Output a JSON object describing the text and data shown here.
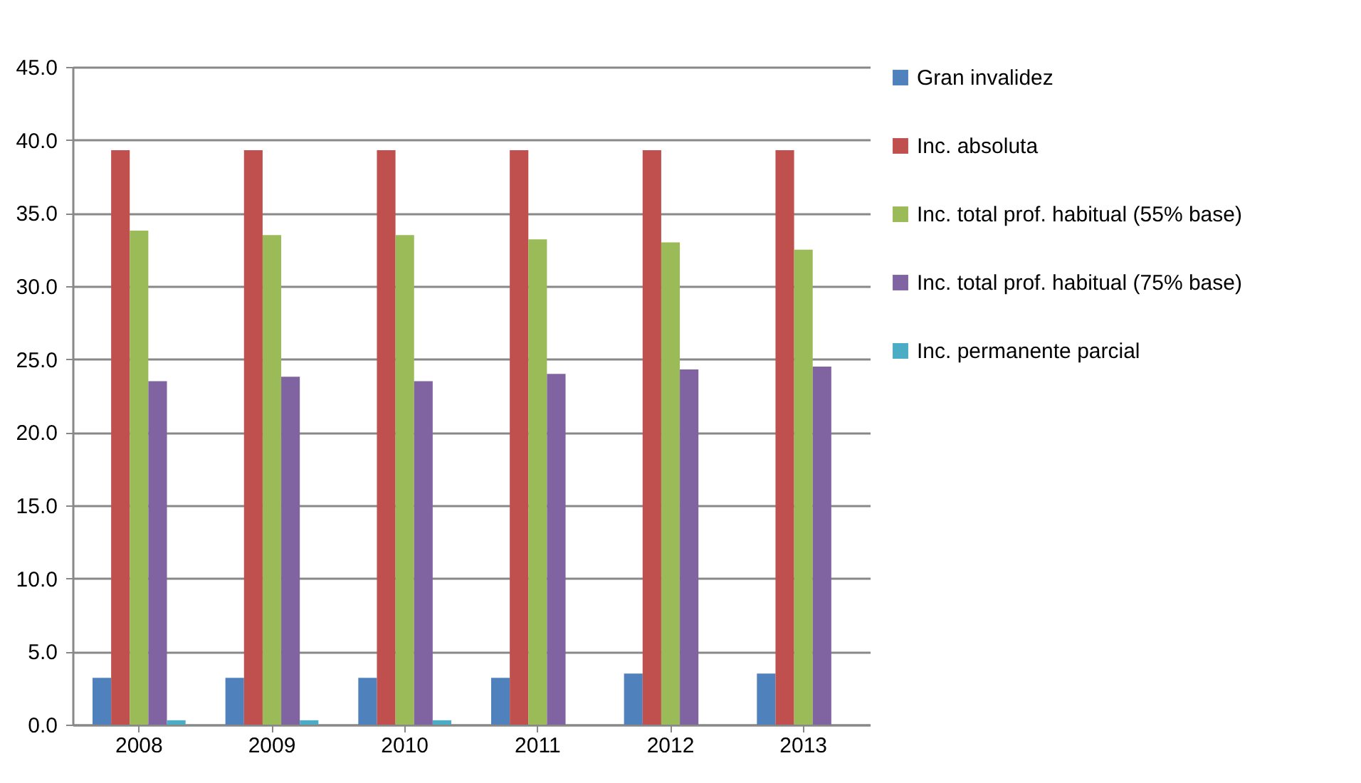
{
  "chart_data": {
    "type": "bar",
    "categories": [
      "2008",
      "2009",
      "2010",
      "2011",
      "2012",
      "2013"
    ],
    "series": [
      {
        "name": "Gran invalidez",
        "color": "#4f81bd",
        "values": [
          3.2,
          3.2,
          3.2,
          3.2,
          3.5,
          3.5
        ]
      },
      {
        "name": "Inc. absoluta",
        "color": "#c0504d",
        "values": [
          39.3,
          39.3,
          39.3,
          39.3,
          39.3,
          39.3
        ]
      },
      {
        "name": "Inc. total prof. habitual (55% base)",
        "color": "#9bbb59",
        "values": [
          33.8,
          33.5,
          33.5,
          33.2,
          33.0,
          32.5
        ]
      },
      {
        "name": "Inc. total prof. habitual (75% base)",
        "color": "#8064a2",
        "values": [
          23.5,
          23.8,
          23.5,
          24.0,
          24.3,
          24.5
        ]
      },
      {
        "name": "Inc. permanente parcial",
        "color": "#4bacc6",
        "values": [
          0.3,
          0.3,
          0.3,
          0,
          0,
          0
        ]
      }
    ],
    "ylim": [
      0,
      45
    ],
    "yticks": [
      {
        "value": 0,
        "label": "0.0"
      },
      {
        "value": 5,
        "label": "5.0"
      },
      {
        "value": 10,
        "label": "10.0"
      },
      {
        "value": 15,
        "label": "15.0"
      },
      {
        "value": 20,
        "label": "20.0"
      },
      {
        "value": 25,
        "label": "25.0"
      },
      {
        "value": 30,
        "label": "30.0"
      },
      {
        "value": 35,
        "label": "35.0"
      },
      {
        "value": 40,
        "label": "40.0"
      },
      {
        "value": 45,
        "label": "45.0"
      }
    ],
    "grid": "y",
    "legend": "right"
  }
}
